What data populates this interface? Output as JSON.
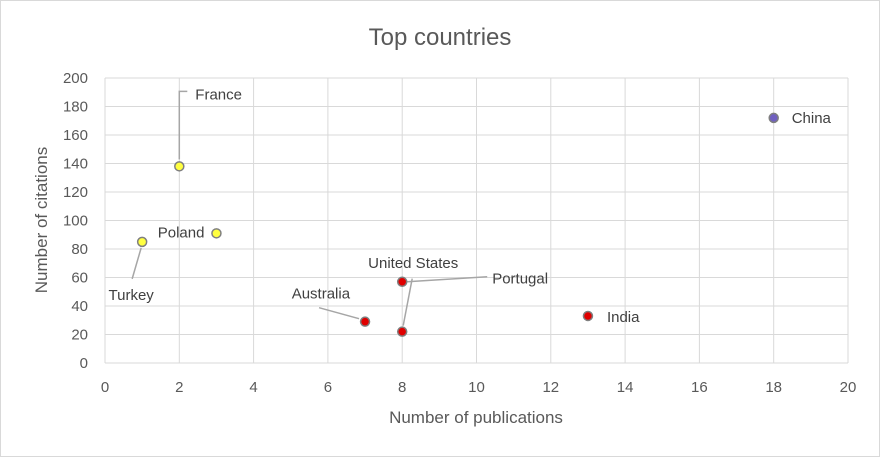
{
  "chart_data": {
    "type": "scatter",
    "title": "Top countries",
    "xlabel": "Number of publications",
    "ylabel": "Number of citations",
    "xlim": [
      0,
      20
    ],
    "ylim": [
      0,
      200
    ],
    "xticks": [
      "0",
      "2",
      "4",
      "6",
      "8",
      "10",
      "12",
      "14",
      "16",
      "18",
      "20"
    ],
    "yticks": [
      "0",
      "20",
      "40",
      "60",
      "80",
      "100",
      "120",
      "140",
      "160",
      "180",
      "200"
    ],
    "grid": true,
    "legend": "none",
    "points": [
      {
        "label": "China",
        "x": 18,
        "y": 172,
        "color": "#7060c0"
      },
      {
        "label": "France",
        "x": 2,
        "y": 138,
        "color": "#ffff40"
      },
      {
        "label": "Poland",
        "x": 3,
        "y": 91,
        "color": "#ffff40"
      },
      {
        "label": "Turkey",
        "x": 1,
        "y": 85,
        "color": "#ffff40"
      },
      {
        "label": "United States",
        "x": 8,
        "y": 57,
        "color": "#e00000"
      },
      {
        "label": "India",
        "x": 13,
        "y": 33,
        "color": "#e00000"
      },
      {
        "label": "Australia",
        "x": 7,
        "y": 29,
        "color": "#e00000"
      },
      {
        "label": "Portugal",
        "x": 8,
        "y": 22,
        "color": "#e00000"
      }
    ]
  }
}
